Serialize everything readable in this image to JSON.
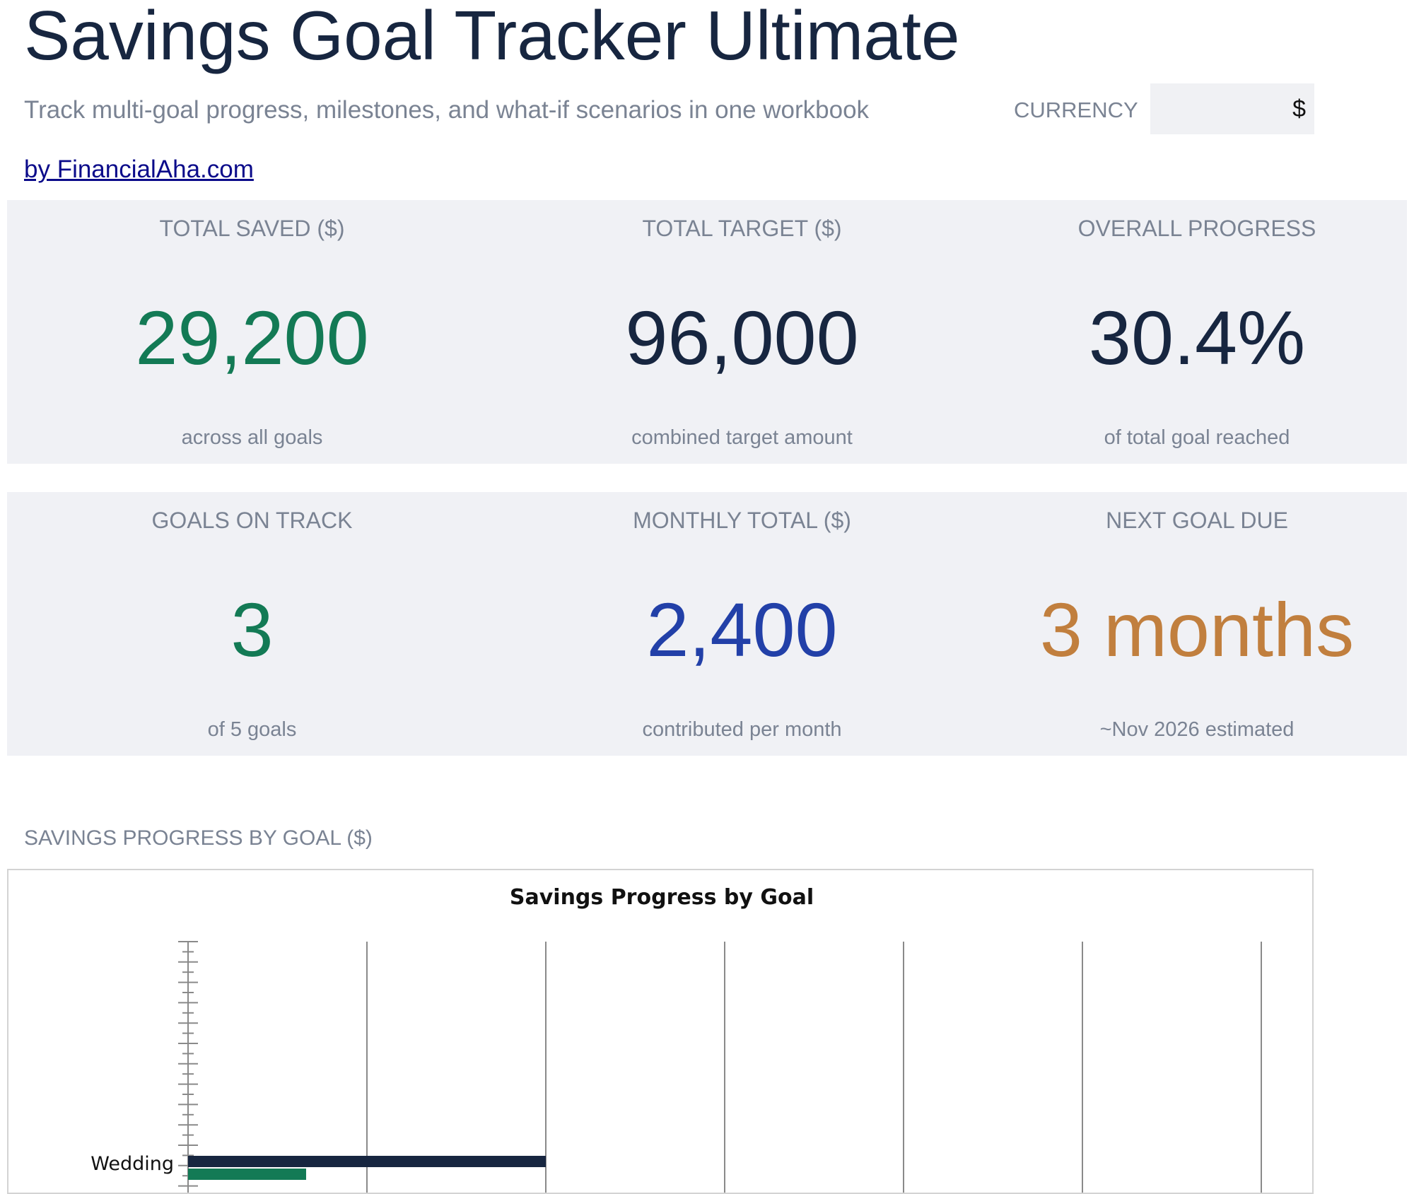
{
  "header": {
    "title": "Savings Goal Tracker Ultimate",
    "subtitle": "Track multi-goal progress, milestones, and what-if scenarios in one workbook",
    "currency_label": "CURRENCY",
    "currency_value": "$",
    "byline": "by FinancialAha.com"
  },
  "kpis_row1": [
    {
      "label": "TOTAL SAVED ($)",
      "value": "29,200",
      "sub": "across all goals",
      "color": "#137a55"
    },
    {
      "label": "TOTAL TARGET ($)",
      "value": "96,000",
      "sub": "combined target amount",
      "color": "#172640"
    },
    {
      "label": "OVERALL PROGRESS",
      "value": "30.4%",
      "sub": "of total goal reached",
      "color": "#172640"
    }
  ],
  "kpis_row2": [
    {
      "label": "GOALS ON TRACK",
      "value": "3",
      "sub": "of 5 goals",
      "color": "#137a55"
    },
    {
      "label": "MONTHLY TOTAL ($)",
      "value": "2,400",
      "sub": "contributed per month",
      "color": "#2240a8"
    },
    {
      "label": "NEXT GOAL DUE",
      "value": "3 months",
      "sub": "~Nov 2026 estimated",
      "color": "#c17f3e"
    }
  ],
  "section": {
    "chart_section_title": "SAVINGS PROGRESS BY GOAL ($)"
  },
  "chart_data": {
    "type": "bar",
    "orientation": "horizontal",
    "title": "Savings Progress by Goal",
    "xlabel": "",
    "ylabel": "",
    "categories": [
      "Wedding"
    ],
    "series": [
      {
        "values": [
          20000
        ],
        "color": "#172640"
      },
      {
        "values": [
          6600
        ],
        "color": "#137a55"
      }
    ],
    "xlim": [
      0,
      60000
    ],
    "grid": true,
    "legend": "none"
  }
}
